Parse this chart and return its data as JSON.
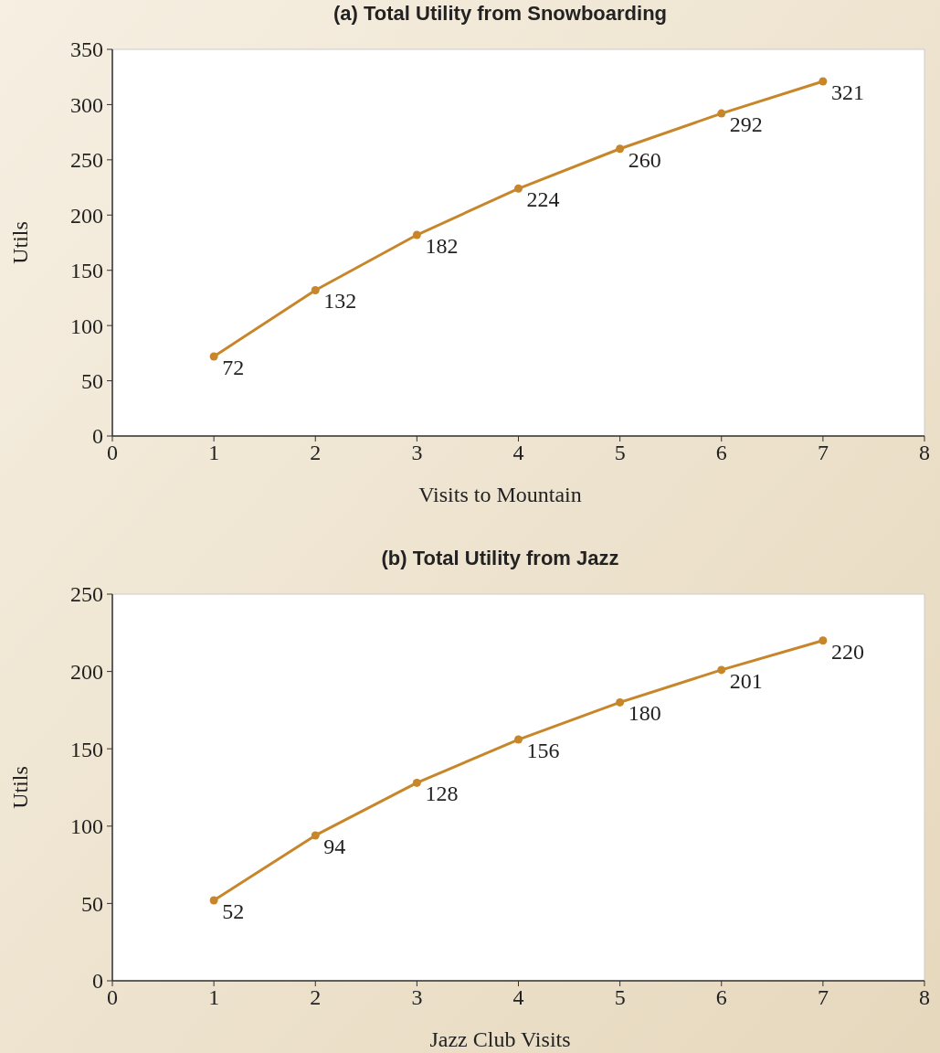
{
  "chart_data": [
    {
      "type": "line",
      "title": "(a) Total Utility from Snowboarding",
      "xlabel": "Visits to Mountain",
      "ylabel": "Utils",
      "x": [
        1,
        2,
        3,
        4,
        5,
        6,
        7
      ],
      "series": [
        {
          "color": "#c8862a",
          "values": [
            72,
            132,
            182,
            224,
            260,
            292,
            321
          ]
        }
      ],
      "xlim": [
        0,
        8
      ],
      "xticks": [
        0,
        1,
        2,
        3,
        4,
        5,
        6,
        7,
        8
      ],
      "ylim": [
        0,
        350
      ],
      "yticks": [
        0,
        50,
        100,
        150,
        200,
        250,
        300,
        350
      ],
      "data_labels": true,
      "marker": "circle"
    },
    {
      "type": "line",
      "title": "(b) Total Utility from Jazz",
      "xlabel": "Jazz Club Visits",
      "ylabel": "Utils",
      "x": [
        1,
        2,
        3,
        4,
        5,
        6,
        7
      ],
      "series": [
        {
          "color": "#c8862a",
          "values": [
            52,
            94,
            128,
            156,
            180,
            201,
            220
          ]
        }
      ],
      "xlim": [
        0,
        8
      ],
      "xticks": [
        0,
        1,
        2,
        3,
        4,
        5,
        6,
        7,
        8
      ],
      "ylim": [
        0,
        250
      ],
      "yticks": [
        0,
        50,
        100,
        150,
        200,
        250
      ],
      "data_labels": true,
      "marker": "circle"
    }
  ]
}
